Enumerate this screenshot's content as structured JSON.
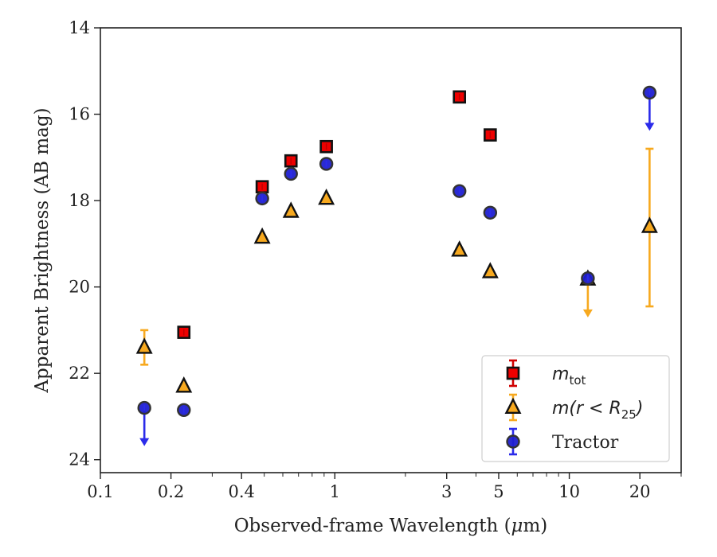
{
  "chart_data": {
    "type": "scatter",
    "xscale": "log",
    "yinverted": true,
    "xlim": [
      0.1,
      30
    ],
    "ylim": [
      24.3,
      14
    ],
    "xlabel_main": "Observed-frame Wavelength (",
    "xlabel_mu": "μ",
    "xlabel_end": "m)",
    "ylabel": "Apparent Brightness (AB mag)",
    "xticks": [
      {
        "value": 0.1,
        "label": "0.1"
      },
      {
        "value": 0.2,
        "label": "0.2"
      },
      {
        "value": 0.4,
        "label": "0.4"
      },
      {
        "value": 1,
        "label": "1"
      },
      {
        "value": 3,
        "label": "3"
      },
      {
        "value": 5,
        "label": "5"
      },
      {
        "value": 10,
        "label": "10"
      },
      {
        "value": 20,
        "label": "20"
      }
    ],
    "yticks": [
      {
        "value": 14,
        "label": "14"
      },
      {
        "value": 16,
        "label": "16"
      },
      {
        "value": 18,
        "label": "18"
      },
      {
        "value": 20,
        "label": "20"
      },
      {
        "value": 22,
        "label": "22"
      },
      {
        "value": 24,
        "label": "24"
      }
    ],
    "series": [
      {
        "name": "m_tot",
        "marker": "square",
        "fill": "#ee0000",
        "errcolor": "#d00000",
        "points": [
          {
            "x": 0.227,
            "y": 21.05
          },
          {
            "x": 0.49,
            "y": 17.68
          },
          {
            "x": 0.65,
            "y": 17.08
          },
          {
            "x": 0.92,
            "y": 16.75
          },
          {
            "x": 3.4,
            "y": 15.6
          },
          {
            "x": 4.6,
            "y": 16.48
          }
        ]
      },
      {
        "name": "m(r < R25)",
        "marker": "triangle",
        "fill": "#f7a91f",
        "errcolor": "#f7a91f",
        "points": [
          {
            "x": 0.154,
            "y": 21.4,
            "err": 0.4
          },
          {
            "x": 0.227,
            "y": 22.3
          },
          {
            "x": 0.49,
            "y": 18.85
          },
          {
            "x": 0.65,
            "y": 18.25
          },
          {
            "x": 0.92,
            "y": 17.95
          },
          {
            "x": 3.4,
            "y": 19.15
          },
          {
            "x": 4.6,
            "y": 19.65
          },
          {
            "x": 12.0,
            "y": 19.82,
            "upper_limit": true
          },
          {
            "x": 22.0,
            "y": 18.6,
            "err_lo": 1.8,
            "err_hi": 1.85
          }
        ]
      },
      {
        "name": "Tractor",
        "marker": "circle",
        "fill": "#1f1fd0",
        "errcolor": "#2b2bea",
        "points": [
          {
            "x": 0.154,
            "y": 22.8,
            "upper_limit": true
          },
          {
            "x": 0.227,
            "y": 22.85
          },
          {
            "x": 0.49,
            "y": 17.95
          },
          {
            "x": 0.65,
            "y": 17.38
          },
          {
            "x": 0.92,
            "y": 17.15
          },
          {
            "x": 3.4,
            "y": 17.78
          },
          {
            "x": 4.6,
            "y": 18.28
          },
          {
            "x": 12.0,
            "y": 19.8
          },
          {
            "x": 22.0,
            "y": 15.5,
            "upper_limit": true
          }
        ]
      }
    ],
    "legend": {
      "placement": "lower-right",
      "entries": [
        {
          "series": 0,
          "main": "m",
          "sub": "tot",
          "tail": ""
        },
        {
          "series": 1,
          "main": "m(r < R",
          "sub": "25",
          "tail": ")"
        },
        {
          "series": 2,
          "main": "Tractor",
          "sub": "",
          "tail": ""
        }
      ]
    }
  }
}
